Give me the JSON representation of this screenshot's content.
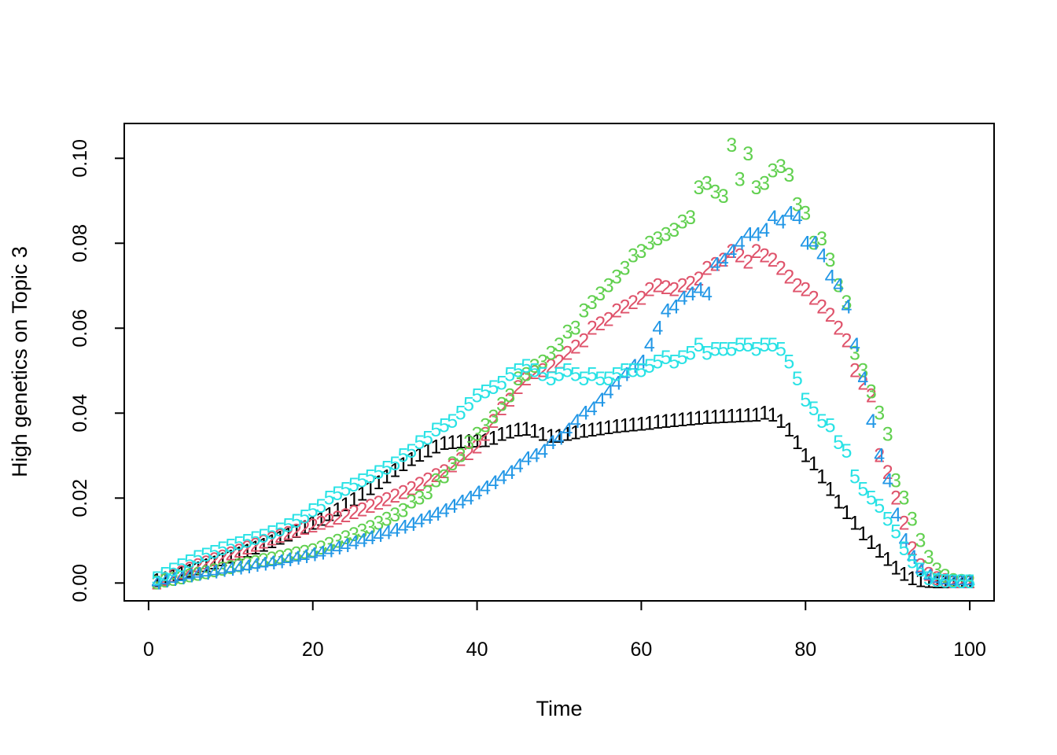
{
  "chart_data": {
    "type": "scatter",
    "title": "",
    "xlabel": "Time",
    "ylabel": "High genetics on Topic 3",
    "xlim": [
      -2.96,
      102.96
    ],
    "ylim": [
      -0.0042,
      0.1082
    ],
    "xticks": [
      0,
      20,
      40,
      60,
      80,
      100
    ],
    "yticks": [
      0.0,
      0.02,
      0.04,
      0.06,
      0.08,
      0.1
    ],
    "xtick_labels": [
      "0",
      "20",
      "40",
      "60",
      "80",
      "100"
    ],
    "ytick_labels": [
      "0.00",
      "0.02",
      "0.04",
      "0.06",
      "0.08",
      "0.10"
    ],
    "grid": false,
    "legend": "none",
    "marker": "series number",
    "x": [
      1,
      2,
      3,
      4,
      5,
      6,
      7,
      8,
      9,
      10,
      11,
      12,
      13,
      14,
      15,
      16,
      17,
      18,
      19,
      20,
      21,
      22,
      23,
      24,
      25,
      26,
      27,
      28,
      29,
      30,
      31,
      32,
      33,
      34,
      35,
      36,
      37,
      38,
      39,
      40,
      41,
      42,
      43,
      44,
      45,
      46,
      47,
      48,
      49,
      50,
      51,
      52,
      53,
      54,
      55,
      56,
      57,
      58,
      59,
      60,
      61,
      62,
      63,
      64,
      65,
      66,
      67,
      68,
      69,
      70,
      71,
      72,
      73,
      74,
      75,
      76,
      77,
      78,
      79,
      80,
      81,
      82,
      83,
      84,
      85,
      86,
      87,
      88,
      89,
      90,
      91,
      92,
      93,
      94,
      95,
      96,
      97,
      98,
      99,
      100
    ],
    "series": [
      {
        "name": "1",
        "color": "#000000",
        "values": [
          0.0005,
          0.001,
          0.0015,
          0.0021,
          0.0027,
          0.0033,
          0.004,
          0.0047,
          0.0054,
          0.0061,
          0.0068,
          0.0075,
          0.0082,
          0.0089,
          0.0097,
          0.0105,
          0.0113,
          0.0121,
          0.013,
          0.014,
          0.015,
          0.0161,
          0.0172,
          0.0184,
          0.0196,
          0.0209,
          0.0222,
          0.0236,
          0.025,
          0.0264,
          0.0278,
          0.029,
          0.0301,
          0.0311,
          0.032,
          0.0328,
          0.033,
          0.0332,
          0.0333,
          0.0334,
          0.0335,
          0.034,
          0.035,
          0.0355,
          0.036,
          0.0362,
          0.0357,
          0.035,
          0.0345,
          0.0345,
          0.035,
          0.0353,
          0.0357,
          0.036,
          0.0363,
          0.0365,
          0.0368,
          0.037,
          0.0372,
          0.0374,
          0.0376,
          0.0378,
          0.038,
          0.0382,
          0.0384,
          0.0386,
          0.0388,
          0.0389,
          0.039,
          0.0391,
          0.0392,
          0.0393,
          0.0394,
          0.0395,
          0.04,
          0.0395,
          0.038,
          0.036,
          0.033,
          0.03,
          0.028,
          0.025,
          0.022,
          0.019,
          0.0165,
          0.014,
          0.0115,
          0.0095,
          0.0075,
          0.0055,
          0.0035,
          0.002,
          0.001,
          0.0005,
          0.0003,
          0.0002,
          0.0002,
          0.0002,
          0.0002,
          0.0002
        ]
      },
      {
        "name": "2",
        "color": "#DF536B",
        "values": [
          0.0,
          0.0008,
          0.0016,
          0.0024,
          0.0032,
          0.004,
          0.0047,
          0.0054,
          0.0061,
          0.0068,
          0.0075,
          0.0082,
          0.0089,
          0.0096,
          0.0103,
          0.011,
          0.0116,
          0.0122,
          0.0128,
          0.0134,
          0.014,
          0.0146,
          0.0152,
          0.0158,
          0.0165,
          0.0172,
          0.018,
          0.0188,
          0.0196,
          0.0204,
          0.0213,
          0.0222,
          0.0232,
          0.0242,
          0.0252,
          0.0262,
          0.0276,
          0.029,
          0.0304,
          0.032,
          0.035,
          0.038,
          0.041,
          0.043,
          0.046,
          0.048,
          0.0495,
          0.05,
          0.051,
          0.052,
          0.054,
          0.0555,
          0.057,
          0.06,
          0.061,
          0.062,
          0.064,
          0.065,
          0.066,
          0.067,
          0.069,
          0.07,
          0.0695,
          0.069,
          0.07,
          0.0705,
          0.0715,
          0.074,
          0.075,
          0.076,
          0.078,
          0.077,
          0.0755,
          0.078,
          0.077,
          0.076,
          0.074,
          0.072,
          0.07,
          0.069,
          0.067,
          0.065,
          0.063,
          0.06,
          0.057,
          0.05,
          0.047,
          0.044,
          0.03,
          0.026,
          0.02,
          0.014,
          0.008,
          0.004,
          0.002,
          0.001,
          0.0005,
          0.0002,
          0.0002,
          0.0002
        ]
      },
      {
        "name": "3",
        "color": "#61D04F",
        "values": [
          0.0,
          0.0004,
          0.0008,
          0.0012,
          0.0016,
          0.002,
          0.0024,
          0.0028,
          0.0032,
          0.0036,
          0.004,
          0.0044,
          0.0048,
          0.0052,
          0.0056,
          0.006,
          0.0064,
          0.0068,
          0.0072,
          0.0076,
          0.0082,
          0.009,
          0.0098,
          0.0106,
          0.0114,
          0.0122,
          0.013,
          0.014,
          0.015,
          0.016,
          0.017,
          0.019,
          0.02,
          0.0212,
          0.024,
          0.025,
          0.028,
          0.03,
          0.033,
          0.035,
          0.037,
          0.039,
          0.042,
          0.044,
          0.048,
          0.049,
          0.051,
          0.052,
          0.054,
          0.056,
          0.059,
          0.06,
          0.064,
          0.066,
          0.068,
          0.07,
          0.072,
          0.074,
          0.077,
          0.078,
          0.08,
          0.081,
          0.082,
          0.083,
          0.085,
          0.086,
          0.093,
          0.094,
          0.092,
          0.091,
          0.103,
          0.095,
          0.101,
          0.093,
          0.094,
          0.097,
          0.098,
          0.096,
          0.089,
          0.087,
          0.08,
          0.081,
          0.076,
          0.07,
          0.066,
          0.054,
          0.05,
          0.045,
          0.04,
          0.035,
          0.024,
          0.02,
          0.015,
          0.01,
          0.006,
          0.003,
          0.0015,
          0.0005,
          0.0003,
          0.0002
        ]
      },
      {
        "name": "4",
        "color": "#2297E6",
        "values": [
          0.0,
          0.0004,
          0.0008,
          0.0012,
          0.0016,
          0.002,
          0.0023,
          0.0026,
          0.0029,
          0.0032,
          0.0035,
          0.0038,
          0.0041,
          0.0044,
          0.0047,
          0.005,
          0.0054,
          0.0058,
          0.0062,
          0.0066,
          0.007,
          0.0076,
          0.0082,
          0.0088,
          0.0094,
          0.01,
          0.0106,
          0.0112,
          0.0118,
          0.0124,
          0.0131,
          0.0138,
          0.0146,
          0.0154,
          0.0162,
          0.017,
          0.018,
          0.019,
          0.02,
          0.0212,
          0.0224,
          0.0236,
          0.0248,
          0.026,
          0.0276,
          0.0292,
          0.03,
          0.031,
          0.033,
          0.034,
          0.036,
          0.038,
          0.04,
          0.041,
          0.043,
          0.045,
          0.047,
          0.049,
          0.051,
          0.052,
          0.056,
          0.06,
          0.064,
          0.065,
          0.067,
          0.068,
          0.069,
          0.068,
          0.075,
          0.076,
          0.078,
          0.08,
          0.082,
          0.082,
          0.083,
          0.086,
          0.085,
          0.087,
          0.086,
          0.08,
          0.08,
          0.077,
          0.072,
          0.07,
          0.065,
          0.056,
          0.048,
          0.038,
          0.03,
          0.024,
          0.016,
          0.01,
          0.006,
          0.003,
          0.0015,
          0.0008,
          0.0004,
          0.0002,
          0.0002,
          0.0002
        ]
      },
      {
        "name": "5",
        "color": "#28E2E5",
        "values": [
          0.001,
          0.002,
          0.003,
          0.004,
          0.005,
          0.006,
          0.0065,
          0.0072,
          0.008,
          0.0087,
          0.0092,
          0.0098,
          0.0104,
          0.011,
          0.0118,
          0.0125,
          0.0135,
          0.0145,
          0.0155,
          0.017,
          0.018,
          0.02,
          0.021,
          0.022,
          0.023,
          0.024,
          0.025,
          0.026,
          0.027,
          0.028,
          0.03,
          0.031,
          0.033,
          0.034,
          0.036,
          0.037,
          0.038,
          0.04,
          0.042,
          0.044,
          0.045,
          0.046,
          0.047,
          0.049,
          0.05,
          0.051,
          0.05,
          0.049,
          0.048,
          0.049,
          0.05,
          0.049,
          0.048,
          0.049,
          0.048,
          0.048,
          0.049,
          0.05,
          0.05,
          0.05,
          0.051,
          0.052,
          0.053,
          0.052,
          0.053,
          0.054,
          0.056,
          0.054,
          0.055,
          0.055,
          0.055,
          0.056,
          0.056,
          0.055,
          0.056,
          0.056,
          0.055,
          0.052,
          0.048,
          0.043,
          0.041,
          0.038,
          0.037,
          0.033,
          0.031,
          0.025,
          0.022,
          0.02,
          0.018,
          0.015,
          0.012,
          0.008,
          0.005,
          0.003,
          0.001,
          0.0005,
          0.0003,
          0.0002,
          0.0002,
          0.0002
        ]
      }
    ]
  }
}
